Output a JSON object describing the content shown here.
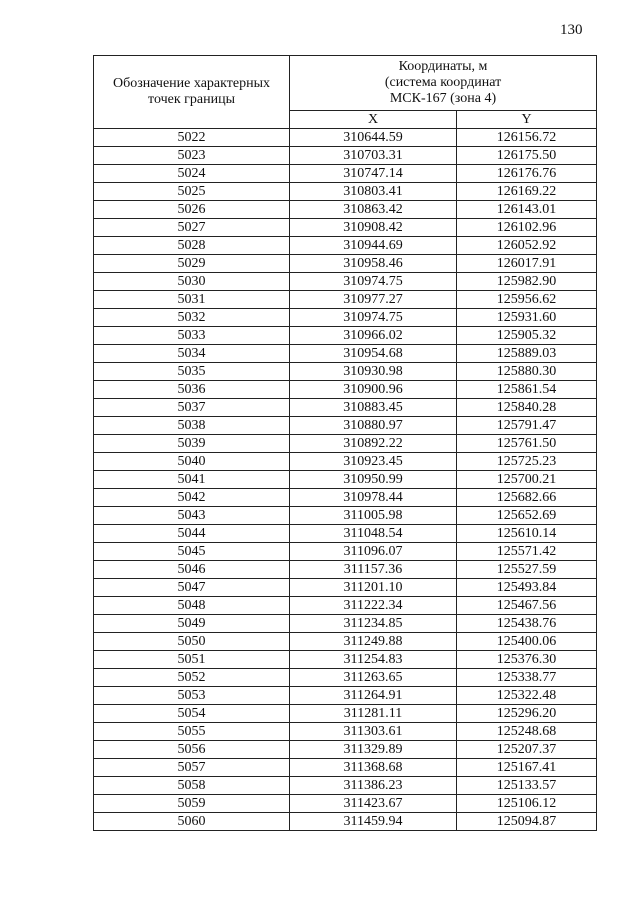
{
  "page_number": "130",
  "table": {
    "header": {
      "point_label": "Обозначение характерных точек границы",
      "coords_label_line1": "Координаты, м",
      "coords_label_line2": "(система координат",
      "coords_label_line3": "МСК-167 (зона 4)",
      "x_label": "X",
      "y_label": "Y"
    },
    "rows": [
      [
        "5022",
        "310644.59",
        "126156.72"
      ],
      [
        "5023",
        "310703.31",
        "126175.50"
      ],
      [
        "5024",
        "310747.14",
        "126176.76"
      ],
      [
        "5025",
        "310803.41",
        "126169.22"
      ],
      [
        "5026",
        "310863.42",
        "126143.01"
      ],
      [
        "5027",
        "310908.42",
        "126102.96"
      ],
      [
        "5028",
        "310944.69",
        "126052.92"
      ],
      [
        "5029",
        "310958.46",
        "126017.91"
      ],
      [
        "5030",
        "310974.75",
        "125982.90"
      ],
      [
        "5031",
        "310977.27",
        "125956.62"
      ],
      [
        "5032",
        "310974.75",
        "125931.60"
      ],
      [
        "5033",
        "310966.02",
        "125905.32"
      ],
      [
        "5034",
        "310954.68",
        "125889.03"
      ],
      [
        "5035",
        "310930.98",
        "125880.30"
      ],
      [
        "5036",
        "310900.96",
        "125861.54"
      ],
      [
        "5037",
        "310883.45",
        "125840.28"
      ],
      [
        "5038",
        "310880.97",
        "125791.47"
      ],
      [
        "5039",
        "310892.22",
        "125761.50"
      ],
      [
        "5040",
        "310923.45",
        "125725.23"
      ],
      [
        "5041",
        "310950.99",
        "125700.21"
      ],
      [
        "5042",
        "310978.44",
        "125682.66"
      ],
      [
        "5043",
        "311005.98",
        "125652.69"
      ],
      [
        "5044",
        "311048.54",
        "125610.14"
      ],
      [
        "5045",
        "311096.07",
        "125571.42"
      ],
      [
        "5046",
        "311157.36",
        "125527.59"
      ],
      [
        "5047",
        "311201.10",
        "125493.84"
      ],
      [
        "5048",
        "311222.34",
        "125467.56"
      ],
      [
        "5049",
        "311234.85",
        "125438.76"
      ],
      [
        "5050",
        "311249.88",
        "125400.06"
      ],
      [
        "5051",
        "311254.83",
        "125376.30"
      ],
      [
        "5052",
        "311263.65",
        "125338.77"
      ],
      [
        "5053",
        "311264.91",
        "125322.48"
      ],
      [
        "5054",
        "311281.11",
        "125296.20"
      ],
      [
        "5055",
        "311303.61",
        "125248.68"
      ],
      [
        "5056",
        "311329.89",
        "125207.37"
      ],
      [
        "5057",
        "311368.68",
        "125167.41"
      ],
      [
        "5058",
        "311386.23",
        "125133.57"
      ],
      [
        "5059",
        "311423.67",
        "125106.12"
      ],
      [
        "5060",
        "311459.94",
        "125094.87"
      ]
    ]
  }
}
